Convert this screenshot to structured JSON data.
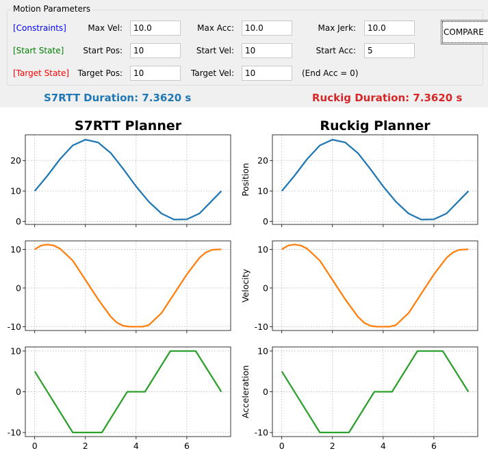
{
  "group_title": "Motion Parameters",
  "sections": {
    "constraints": {
      "label": "[Constraints]",
      "color": "#0000ff"
    },
    "start_state": {
      "label": "[Start State]",
      "color": "#008000"
    },
    "target_state": {
      "label": "[Target State]",
      "color": "#ff0000"
    }
  },
  "fields": {
    "max_vel": {
      "label": "Max Vel:",
      "value": "10.0"
    },
    "max_acc": {
      "label": "Max Acc:",
      "value": "10.0"
    },
    "max_jerk": {
      "label": "Max Jerk:",
      "value": "10.0"
    },
    "start_pos": {
      "label": "Start Pos:",
      "value": "10"
    },
    "start_vel": {
      "label": "Start Vel:",
      "value": "10"
    },
    "start_acc": {
      "label": "Start Acc:",
      "value": "5"
    },
    "target_pos": {
      "label": "Target Pos:",
      "value": "10"
    },
    "target_vel": {
      "label": "Target Vel:",
      "value": "10"
    }
  },
  "end_acc_note": "(End Acc = 0)",
  "compare_button": "COMPARE",
  "durations": {
    "s7rtt": {
      "text": "S7RTT Duration: 7.3620 s",
      "color": "#1f77b4"
    },
    "ruckig": {
      "text": "Ruckig Duration: 7.3620 s",
      "color": "#d62728"
    }
  },
  "chart_data": {
    "type": "line",
    "columns": [
      "S7RTT Planner",
      "Ruckig Planner"
    ],
    "rows": [
      {
        "ylabel": "Position",
        "color": "#1f77b4",
        "ylim": [
          -1,
          28.5
        ],
        "yticks": [
          0,
          10,
          20
        ],
        "x": [
          0,
          0.5,
          1,
          1.5,
          2,
          2.5,
          3,
          3.5,
          4,
          4.5,
          5,
          5.5,
          6,
          6.5,
          7,
          7.362
        ],
        "y": [
          10,
          15,
          20.5,
          25,
          26.9,
          26,
          22.5,
          17.2,
          11.5,
          6.5,
          2.6,
          0.6,
          0.7,
          2.6,
          6.9,
          10
        ]
      },
      {
        "ylabel": "Velocity",
        "color": "#ff7f0e",
        "ylim": [
          -11,
          12.2
        ],
        "yticks": [
          -10,
          0,
          10
        ],
        "x": [
          0,
          0.25,
          0.5,
          0.75,
          1,
          1.5,
          2,
          2.5,
          3,
          3.25,
          3.5,
          3.75,
          4,
          4.25,
          4.5,
          5,
          5.5,
          6,
          6.5,
          6.75,
          7,
          7.362
        ],
        "y": [
          10,
          11,
          11.25,
          11,
          10.2,
          7.1,
          2.1,
          -2.9,
          -7.4,
          -9,
          -9.8,
          -10,
          -10,
          -10,
          -9.6,
          -6.5,
          -1.5,
          3.5,
          7.8,
          9.2,
          9.9,
          10
        ]
      },
      {
        "ylabel": "Acceleration",
        "color": "#2ca02c",
        "ylim": [
          -11,
          11
        ],
        "yticks": [
          -10,
          0,
          10
        ],
        "x": [
          0,
          1.5,
          2.65,
          3.65,
          4.35,
          5.35,
          6.35,
          7.362
        ],
        "y": [
          5,
          -10,
          -10,
          0,
          0,
          10,
          10,
          0
        ]
      }
    ],
    "xlim": [
      -0.37,
      7.73
    ],
    "xticks": [
      0,
      2,
      4,
      6
    ],
    "grid": true
  }
}
